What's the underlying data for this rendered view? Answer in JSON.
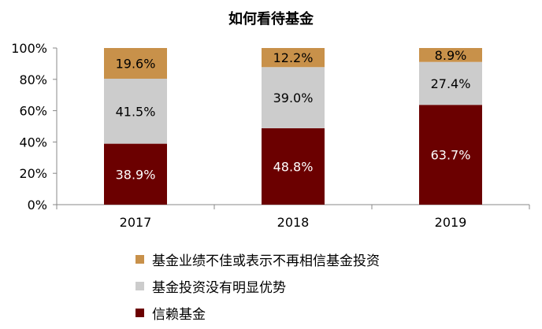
{
  "chart_data": {
    "type": "bar",
    "stacked": true,
    "title": "如何看待基金",
    "categories": [
      "2017",
      "2018",
      "2019"
    ],
    "series": [
      {
        "name": "信赖基金",
        "values": [
          38.9,
          48.8,
          63.7
        ],
        "labels": [
          "38.9%",
          "48.8%",
          "63.7%"
        ],
        "color": "#6b0000",
        "label_color": "#ffffff"
      },
      {
        "name": "基金投资没有明显优势",
        "values": [
          41.5,
          39.0,
          27.4
        ],
        "labels": [
          "41.5%",
          "39.0%",
          "27.4%"
        ],
        "color": "#cccccc",
        "label_color": "#000000"
      },
      {
        "name": "基金业绩不佳或表示不再相信基金投资",
        "values": [
          19.6,
          12.2,
          8.9
        ],
        "labels": [
          "19.6%",
          "12.2%",
          "8.9%"
        ],
        "color": "#c8914a",
        "label_color": "#000000"
      }
    ],
    "legend_order": [
      2,
      1,
      0
    ],
    "y_ticks": [
      "0%",
      "20%",
      "40%",
      "60%",
      "80%",
      "100%"
    ],
    "ylim": [
      0,
      100
    ],
    "grid": false,
    "legend_position": "bottom"
  }
}
